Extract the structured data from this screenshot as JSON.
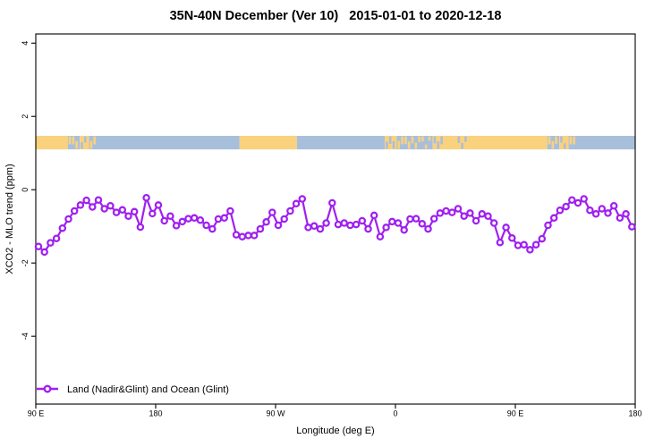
{
  "chart_data": {
    "type": "line",
    "title": "35N-40N December (Ver 10)   2015-01-01 to 2020-12-18",
    "xlabel": "Longitude (deg E)",
    "ylabel": "XCO2 - MLO trend (ppm)",
    "xlim": [
      90,
      540
    ],
    "ylim": [
      -5.85,
      4.25
    ],
    "grid": false,
    "legend_position": "bottom-left-inside",
    "x_ticks": [
      {
        "pos": 90,
        "label": "90 E"
      },
      {
        "pos": 180,
        "label": "180"
      },
      {
        "pos": 270,
        "label": "90 W"
      },
      {
        "pos": 360,
        "label": "0"
      },
      {
        "pos": 450,
        "label": "90 E"
      },
      {
        "pos": 540,
        "label": "180"
      }
    ],
    "y_ticks": [
      {
        "pos": 4,
        "label": "4"
      },
      {
        "pos": 2,
        "label": "2"
      },
      {
        "pos": 0,
        "label": "0"
      },
      {
        "pos": -2,
        "label": "-2"
      },
      {
        "pos": -4,
        "label": "-4"
      }
    ],
    "series": [
      {
        "name": "Land (Nadir&Glint) and Ocean (Glint)",
        "color": "#A020F0",
        "marker": "open-circle",
        "x": [
          92,
          96.5,
          101,
          105.5,
          110,
          114.5,
          119,
          123.5,
          128,
          132.5,
          137,
          141.5,
          146,
          150.5,
          155,
          159.5,
          164,
          168.5,
          173,
          177.5,
          182,
          186.5,
          191,
          195.5,
          200,
          204.5,
          209,
          213.5,
          218,
          222.5,
          227,
          231.5,
          236,
          240.5,
          245,
          249.5,
          254,
          258.5,
          263,
          267.5,
          272,
          276.5,
          281,
          285.5,
          290,
          294.5,
          299,
          303.5,
          308,
          312.5,
          317,
          321.5,
          326,
          330.5,
          335,
          339.5,
          344,
          348.5,
          353,
          357.5,
          362,
          366.5,
          371,
          375.5,
          380,
          384.5,
          389,
          393.5,
          398,
          402.5,
          407,
          411.5,
          416,
          420.5,
          425,
          429.5,
          434,
          438.5,
          443,
          447.5,
          452,
          456.5,
          461,
          465.5,
          470,
          474.5,
          479,
          483.5,
          488,
          492.5,
          497,
          501.5,
          506,
          510.5,
          515,
          519.5,
          524,
          528.5,
          533,
          537.5
        ],
        "y": [
          -1.55,
          -1.7,
          -1.45,
          -1.33,
          -1.05,
          -0.8,
          -0.58,
          -0.42,
          -0.29,
          -0.47,
          -0.28,
          -0.52,
          -0.44,
          -0.62,
          -0.55,
          -0.72,
          -0.6,
          -1.02,
          -0.22,
          -0.65,
          -0.42,
          -0.85,
          -0.72,
          -0.98,
          -0.87,
          -0.79,
          -0.77,
          -0.83,
          -0.97,
          -1.07,
          -0.8,
          -0.77,
          -0.58,
          -1.23,
          -1.28,
          -1.25,
          -1.25,
          -1.07,
          -0.88,
          -0.62,
          -0.97,
          -0.8,
          -0.58,
          -0.38,
          -0.25,
          -1.03,
          -0.99,
          -1.07,
          -0.91,
          -0.36,
          -0.95,
          -0.91,
          -0.97,
          -0.95,
          -0.85,
          -1.07,
          -0.7,
          -1.28,
          -1.03,
          -0.87,
          -0.91,
          -1.1,
          -0.8,
          -0.79,
          -0.93,
          -1.07,
          -0.79,
          -0.64,
          -0.58,
          -0.62,
          -0.52,
          -0.72,
          -0.64,
          -0.85,
          -0.66,
          -0.72,
          -0.91,
          -1.44,
          -1.03,
          -1.32,
          -1.52,
          -1.5,
          -1.64,
          -1.5,
          -1.34,
          -0.97,
          -0.77,
          -0.56,
          -0.46,
          -0.28,
          -0.36,
          -0.25,
          -0.56,
          -0.66,
          -0.52,
          -0.64,
          -0.44,
          -0.77,
          -0.66,
          -1.01
        ]
      }
    ],
    "land_ocean_band": {
      "description": "horizontal land/ocean map strip",
      "y_range": [
        1.1,
        1.47
      ],
      "land_color": "#FAD17C",
      "ocean_color": "#A8BFDC",
      "segments": [
        {
          "from": 90,
          "to": 114,
          "type": "land"
        },
        {
          "from": 114,
          "to": 123,
          "type": "mix_ocean"
        },
        {
          "from": 123,
          "to": 130,
          "type": "mix_land"
        },
        {
          "from": 130,
          "to": 137,
          "type": "mix_ocean"
        },
        {
          "from": 137,
          "to": 243,
          "type": "ocean"
        },
        {
          "from": 243,
          "to": 286,
          "type": "land"
        },
        {
          "from": 286,
          "to": 352,
          "type": "ocean"
        },
        {
          "from": 352,
          "to": 361,
          "type": "mix_land"
        },
        {
          "from": 361,
          "to": 388,
          "type": "mix_ocean"
        },
        {
          "from": 388,
          "to": 397,
          "type": "mix_land"
        },
        {
          "from": 397,
          "to": 406,
          "type": "land"
        },
        {
          "from": 406,
          "to": 414,
          "type": "mix_land"
        },
        {
          "from": 414,
          "to": 474,
          "type": "land"
        },
        {
          "from": 474,
          "to": 483,
          "type": "mix_ocean"
        },
        {
          "from": 483,
          "to": 490,
          "type": "mix_land"
        },
        {
          "from": 490,
          "to": 497,
          "type": "mix_ocean"
        },
        {
          "from": 497,
          "to": 540,
          "type": "ocean"
        }
      ]
    },
    "axis_color": "#000000"
  }
}
